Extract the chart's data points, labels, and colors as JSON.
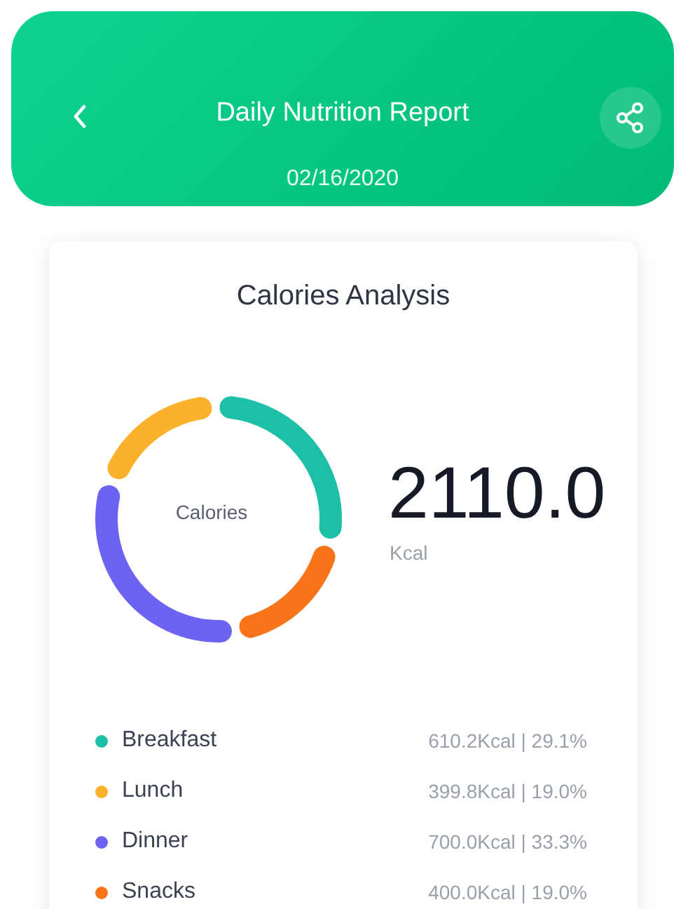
{
  "chart_data": {
    "type": "donut",
    "title": "Daily Nutrition Report",
    "subtitle": "02/16/2020",
    "annotations": [
      "Calories Analysis",
      "Calories",
      "2110.0",
      "Kcal"
    ],
    "categories": [
      "Breakfast",
      "Lunch",
      "Dinner",
      "Snacks"
    ],
    "values": [
      610.2,
      399.8,
      700.0,
      400.0
    ],
    "colors": [
      "#1dbfa6",
      "#fbb12b",
      "#6c63f2",
      "#f97319"
    ],
    "value_labels": [
      "610.2Kcal | 29.1%",
      "399.8Kcal | 19.0%",
      "700.0Kcal | 33.3%",
      "400.0Kcal | 19.0%"
    ],
    "legend": "bottom"
  }
}
